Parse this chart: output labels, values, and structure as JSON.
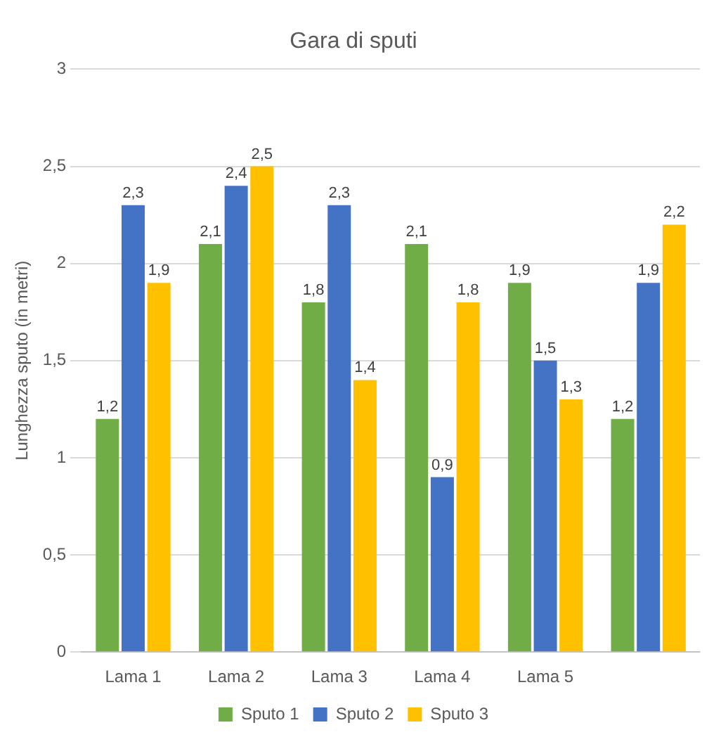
{
  "chart_data": {
    "type": "bar",
    "title": "Gara di sputi",
    "ylabel": "Lunghezza sputo (in metri)",
    "categories": [
      "Lama 1",
      "Lama 2",
      "Lama 3",
      "Lama 4",
      "Lama 5",
      null
    ],
    "series": [
      {
        "name": "Sputo 1",
        "color": "#70ad47",
        "values": [
          1.2,
          2.1,
          1.8,
          2.1,
          1.9,
          1.2
        ],
        "value_labels": [
          "1,2",
          "2,1",
          "1,8",
          "2,1",
          "1,9",
          "1,2"
        ]
      },
      {
        "name": "Sputo 2",
        "color": "#4472c4",
        "values": [
          2.3,
          2.4,
          2.3,
          0.9,
          1.5,
          1.9
        ],
        "value_labels": [
          "2,3",
          "2,4",
          "2,3",
          "0,9",
          "1,5",
          "1,9"
        ]
      },
      {
        "name": "Sputo 3",
        "color": "#ffc000",
        "values": [
          1.9,
          2.5,
          1.4,
          1.8,
          1.3,
          2.2
        ],
        "value_labels": [
          "1,9",
          "2,5",
          "1,4",
          "1,8",
          "1,3",
          "2,2"
        ]
      }
    ],
    "ylim": [
      0,
      3
    ],
    "yticks": [
      0,
      {
        "value": 0.5,
        "label": "0,5"
      },
      1,
      {
        "value": 1.5,
        "label": "1,5"
      },
      2,
      {
        "value": 2.5,
        "label": "2,5"
      },
      3
    ],
    "grid": "y",
    "legend": "bottom"
  }
}
